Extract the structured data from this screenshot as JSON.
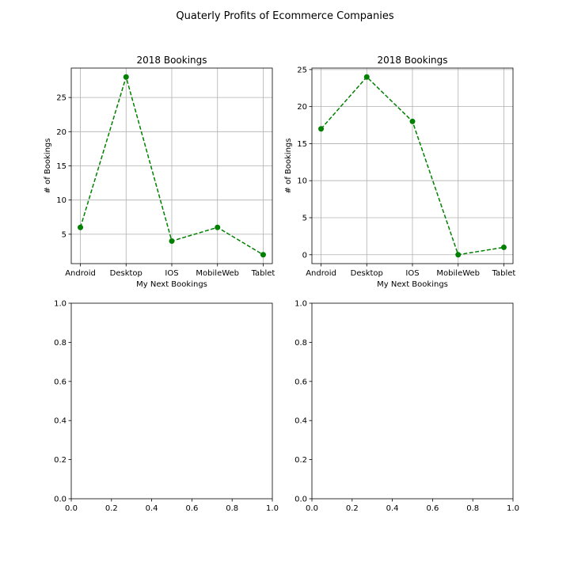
{
  "figure": {
    "title": "Quaterly Profits of Ecommerce Companies"
  },
  "chart_data": [
    {
      "type": "line",
      "title": "2018 Bookings",
      "xlabel": "My Next Bookings",
      "ylabel": "# of Bookings",
      "categories": [
        "Android",
        "Desktop",
        "IOS",
        "MobileWeb",
        "Tablet"
      ],
      "series": [
        {
          "values": [
            6,
            28,
            4,
            6,
            2
          ],
          "color": "#008000",
          "linestyle": "dashed",
          "marker": "circle"
        }
      ],
      "ylim": [
        0.7,
        29.3
      ],
      "yticks": [
        5,
        10,
        15,
        20,
        25
      ],
      "grid": true
    },
    {
      "type": "line",
      "title": "2018 Bookings",
      "xlabel": "My Next Bookings",
      "ylabel": "# of Bookings",
      "categories": [
        "Android",
        "Desktop",
        "IOS",
        "MobileWeb",
        "Tablet"
      ],
      "series": [
        {
          "values": [
            17,
            24,
            18,
            0,
            1
          ],
          "color": "#008000",
          "linestyle": "dashed",
          "marker": "circle"
        }
      ],
      "ylim": [
        -1.2,
        25.2
      ],
      "yticks": [
        0,
        5,
        10,
        15,
        20,
        25
      ],
      "grid": true
    },
    {
      "type": "line",
      "title": "",
      "xlabel": "",
      "ylabel": "",
      "series": [],
      "xlim": [
        0,
        1
      ],
      "ylim": [
        0,
        1
      ],
      "xticks": [
        "0.0",
        "0.2",
        "0.4",
        "0.6",
        "0.8",
        "1.0"
      ],
      "yticks": [
        "0.0",
        "0.2",
        "0.4",
        "0.6",
        "0.8",
        "1.0"
      ],
      "grid": false
    },
    {
      "type": "line",
      "title": "",
      "xlabel": "",
      "ylabel": "",
      "series": [],
      "xlim": [
        0,
        1
      ],
      "ylim": [
        0,
        1
      ],
      "xticks": [
        "0.0",
        "0.2",
        "0.4",
        "0.6",
        "0.8",
        "1.0"
      ],
      "yticks": [
        "0.0",
        "0.2",
        "0.4",
        "0.6",
        "0.8",
        "1.0"
      ],
      "grid": false
    }
  ]
}
